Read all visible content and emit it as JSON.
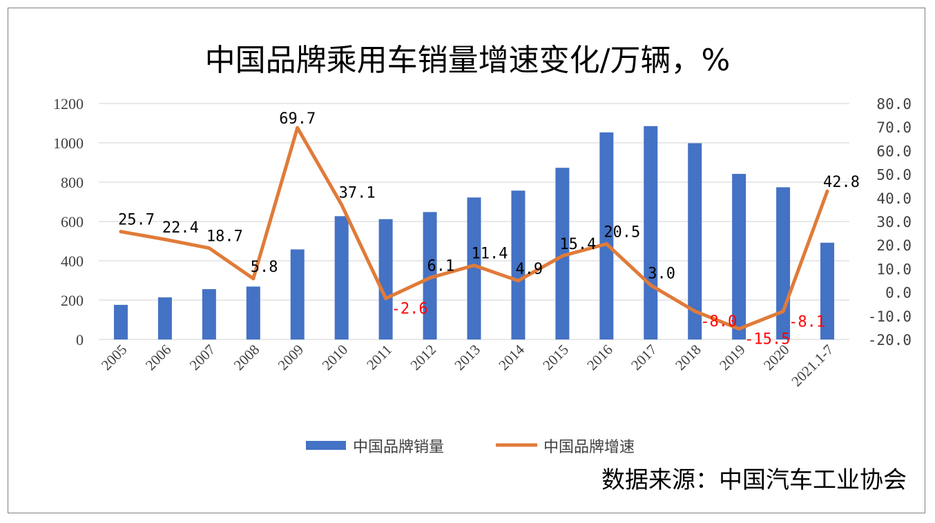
{
  "chart_data": {
    "type": "bar+line",
    "title": "中国品牌乘用车销量增速变化/万辆，%",
    "categories": [
      "2005",
      "2006",
      "2007",
      "2008",
      "2009",
      "2010",
      "2011",
      "2012",
      "2013",
      "2014",
      "2015",
      "2016",
      "2017",
      "2018",
      "2019",
      "2020",
      "2021.1-7"
    ],
    "series": [
      {
        "name": "中国品牌销量",
        "type": "bar",
        "axis": "left",
        "color": "#4472C4",
        "values": [
          176,
          214,
          256,
          269,
          458,
          627,
          612,
          648,
          722,
          757,
          873,
          1053,
          1085,
          998,
          842,
          774,
          492
        ]
      },
      {
        "name": "中国品牌增速",
        "type": "line",
        "axis": "right",
        "color": "#E07B39",
        "values": [
          25.7,
          22.4,
          18.7,
          5.8,
          69.7,
          37.1,
          -2.6,
          6.1,
          11.4,
          4.9,
          15.4,
          20.5,
          3.0,
          -8.0,
          -15.5,
          -8.1,
          42.8
        ],
        "labels": [
          "25.7",
          "22.4",
          "18.7",
          "5.8",
          "69.7",
          "37.1",
          "-2.6",
          "6.1",
          "11.4",
          "4.9",
          "15.4",
          "20.5",
          "3.0",
          "-8.0",
          "-15.5",
          "-8.1",
          "42.8"
        ]
      }
    ],
    "y_left": {
      "range": [
        0,
        1200
      ],
      "ticks": [
        "0",
        "200",
        "400",
        "600",
        "800",
        "1000",
        "1200"
      ]
    },
    "y_right": {
      "range": [
        -20,
        80
      ],
      "ticks": [
        "-20.0",
        "-10.0",
        "0.0",
        "10.0",
        "20.0",
        "30.0",
        "40.0",
        "50.0",
        "60.0",
        "70.0",
        "80.0"
      ]
    },
    "grid": true,
    "legend_position": "bottom",
    "negative_label_color": "#FF0000",
    "label_color": "#000000"
  },
  "source": "数据来源：中国汽车工业协会"
}
